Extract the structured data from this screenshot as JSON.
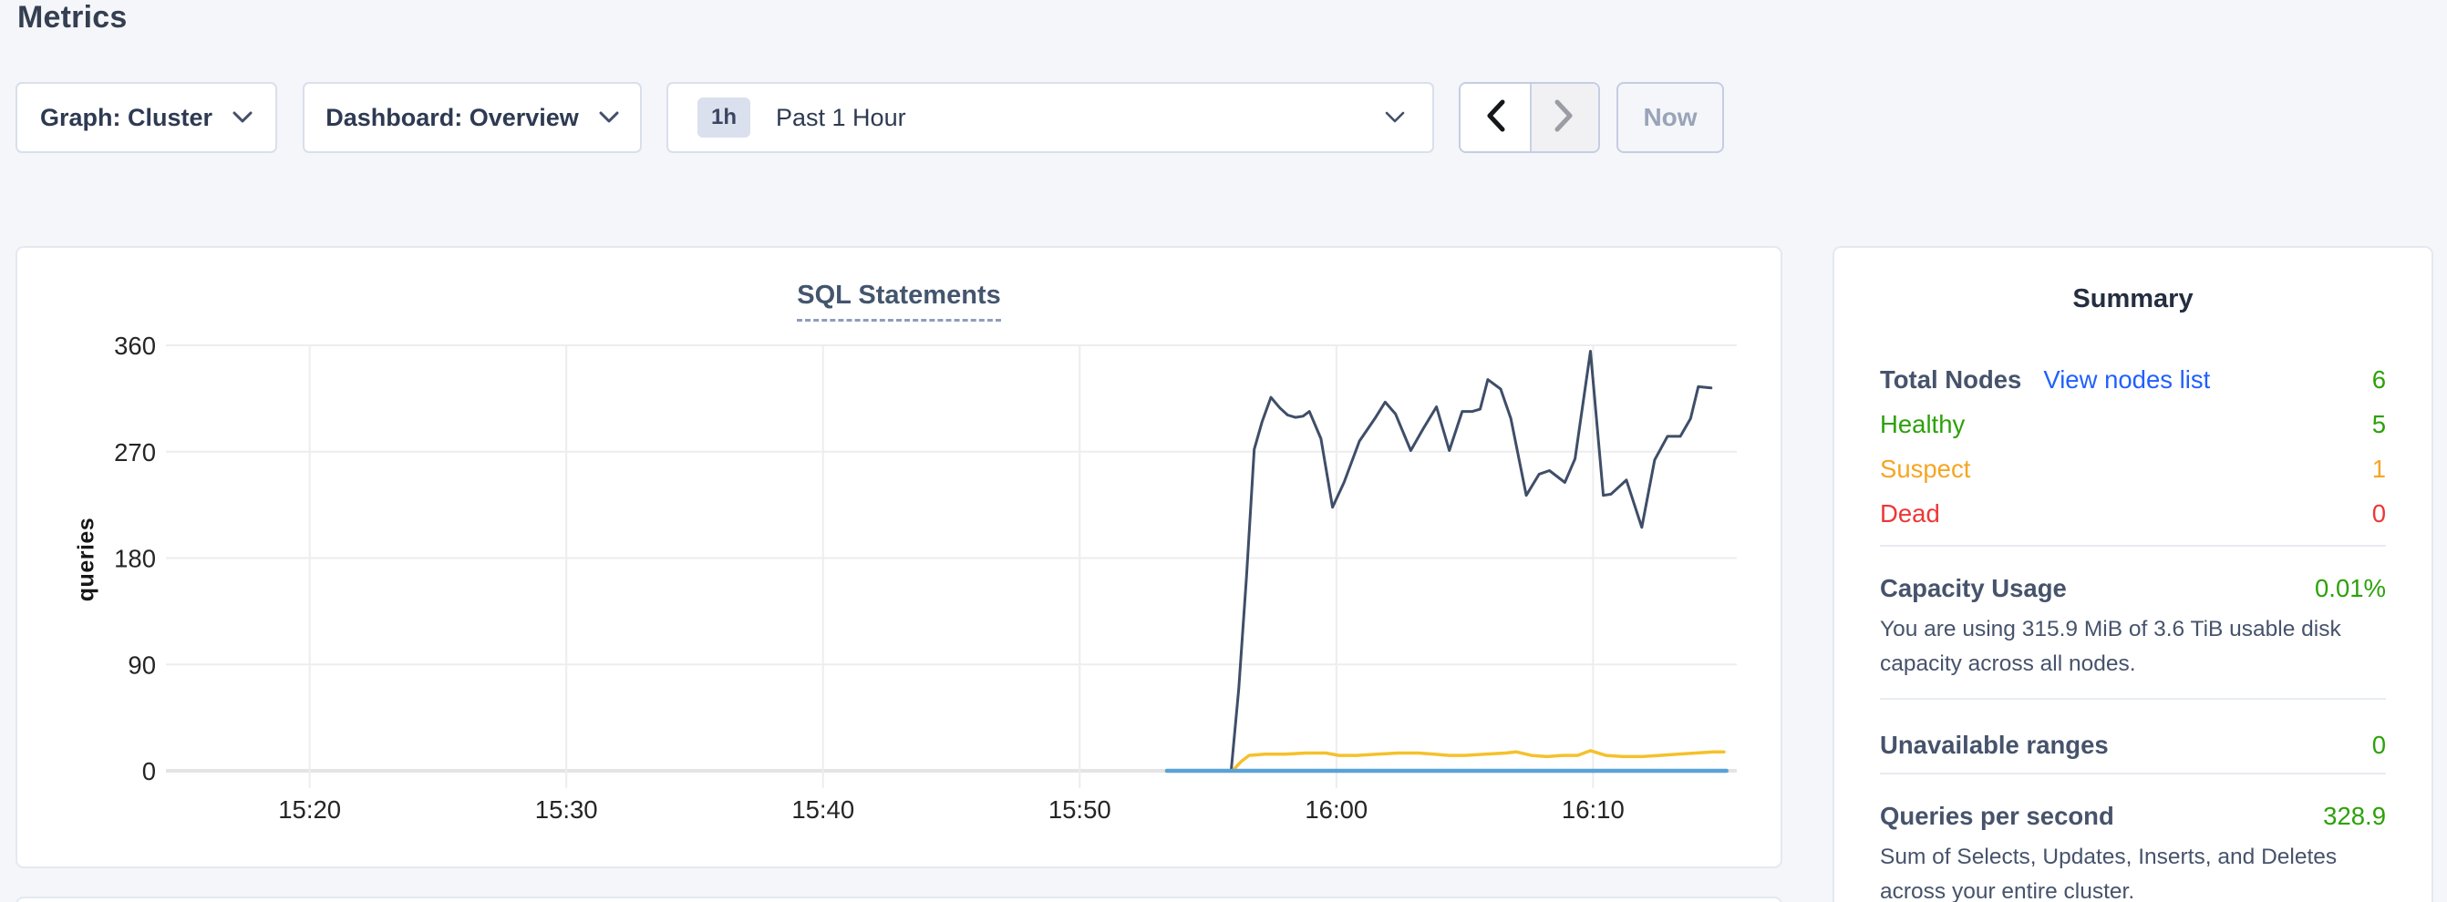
{
  "page": {
    "title": "Metrics"
  },
  "controls": {
    "graph_selector": {
      "label": "Graph: Cluster"
    },
    "dashboard_selector": {
      "label": "Dashboard: Overview"
    },
    "time_selector": {
      "badge": "1h",
      "label": "Past 1 Hour"
    },
    "now_button": {
      "label": "Now"
    }
  },
  "chart_data": {
    "type": "line",
    "title": "SQL Statements",
    "ylabel": "queries",
    "ylim": [
      0,
      360
    ],
    "yticks": [
      0,
      90,
      180,
      270,
      360
    ],
    "xticks": [
      "15:20",
      "15:30",
      "15:40",
      "15:50",
      "16:00",
      "16:10"
    ],
    "xtick_minutes": [
      920,
      930,
      940,
      950,
      960,
      970
    ],
    "x_domain_minutes": [
      914.4,
      975.6
    ],
    "x_unit": "minutes_of_day",
    "grid": true,
    "legend": "none",
    "series": [
      {
        "name": "dark-navy-series",
        "color": "#3f4e68",
        "points": [
          [
            953.4,
            0
          ],
          [
            955.9,
            0
          ],
          [
            956.2,
            70
          ],
          [
            956.5,
            165
          ],
          [
            956.8,
            272
          ],
          [
            957.1,
            295
          ],
          [
            957.45,
            316
          ],
          [
            957.8,
            307
          ],
          [
            958.1,
            301
          ],
          [
            958.4,
            299
          ],
          [
            958.7,
            300
          ],
          [
            958.95,
            304
          ],
          [
            959.4,
            281
          ],
          [
            959.85,
            223
          ],
          [
            960.3,
            244
          ],
          [
            960.9,
            279
          ],
          [
            961.5,
            298
          ],
          [
            961.9,
            312
          ],
          [
            962.3,
            302
          ],
          [
            962.9,
            271
          ],
          [
            963.4,
            290
          ],
          [
            963.9,
            308
          ],
          [
            964.4,
            271
          ],
          [
            964.9,
            304
          ],
          [
            965.3,
            304
          ],
          [
            965.6,
            306
          ],
          [
            965.9,
            331
          ],
          [
            966.4,
            323
          ],
          [
            966.8,
            298
          ],
          [
            967.4,
            233
          ],
          [
            967.9,
            251
          ],
          [
            968.3,
            254
          ],
          [
            968.9,
            244
          ],
          [
            969.3,
            264
          ],
          [
            969.9,
            355
          ],
          [
            970.4,
            233
          ],
          [
            970.7,
            234
          ],
          [
            971.3,
            246
          ],
          [
            971.9,
            206
          ],
          [
            972.4,
            263
          ],
          [
            972.9,
            283
          ],
          [
            973.4,
            283
          ],
          [
            973.8,
            298
          ],
          [
            974.1,
            325
          ],
          [
            974.6,
            324
          ]
        ]
      },
      {
        "name": "yellow-series",
        "color": "#f5c12b",
        "points": [
          [
            953.4,
            0
          ],
          [
            955.95,
            0
          ],
          [
            956.3,
            8
          ],
          [
            956.6,
            13
          ],
          [
            957.2,
            14
          ],
          [
            958.0,
            14
          ],
          [
            958.8,
            15
          ],
          [
            959.6,
            15
          ],
          [
            960.1,
            13
          ],
          [
            960.8,
            13
          ],
          [
            961.6,
            14
          ],
          [
            962.4,
            15
          ],
          [
            963.2,
            15
          ],
          [
            963.8,
            14
          ],
          [
            964.4,
            13
          ],
          [
            965.0,
            13
          ],
          [
            965.8,
            14
          ],
          [
            966.6,
            15
          ],
          [
            967.0,
            16
          ],
          [
            967.6,
            13
          ],
          [
            968.2,
            12
          ],
          [
            968.8,
            13
          ],
          [
            969.4,
            13
          ],
          [
            969.9,
            17
          ],
          [
            970.5,
            13
          ],
          [
            971.2,
            12
          ],
          [
            971.9,
            12
          ],
          [
            972.6,
            13
          ],
          [
            973.3,
            14
          ],
          [
            974.0,
            15
          ],
          [
            974.7,
            16
          ],
          [
            975.1,
            16
          ]
        ]
      },
      {
        "name": "light-blue-series",
        "color": "#5aa2d6",
        "points": [
          [
            953.4,
            0
          ],
          [
            975.2,
            0
          ]
        ]
      }
    ]
  },
  "summary": {
    "title": "Summary",
    "total_nodes": {
      "label": "Total Nodes",
      "link": "View nodes list",
      "value": "6"
    },
    "healthy": {
      "label": "Healthy",
      "value": "5"
    },
    "suspect": {
      "label": "Suspect",
      "value": "1"
    },
    "dead": {
      "label": "Dead",
      "value": "0"
    },
    "capacity": {
      "label": "Capacity Usage",
      "value": "0.01%",
      "description": "You are using 315.9 MiB of 3.6 TiB usable disk capacity across all nodes."
    },
    "unavailable_ranges": {
      "label": "Unavailable ranges",
      "value": "0"
    },
    "qps": {
      "label": "Queries per second",
      "value": "328.9",
      "description": "Sum of Selects, Updates, Inserts, and Deletes across your entire cluster."
    }
  },
  "colors": {
    "page_background": "#f4f6fa",
    "card_border": "#e4e8f0",
    "heading_text": "#343f51",
    "link_blue": "#2160ff",
    "status_green": "#2da10a",
    "status_orange": "#f5a623",
    "status_red": "#ee3636",
    "series_navy": "#3f4e68",
    "series_yellow": "#f5c12b",
    "series_blue": "#5aa2d6",
    "gridline": "#ededed"
  }
}
